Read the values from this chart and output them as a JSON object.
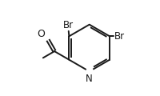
{
  "bg_color": "#ffffff",
  "bond_color": "#1a1a1a",
  "text_color": "#1a1a1a",
  "figsize": [
    2.0,
    1.2
  ],
  "dpi": 100,
  "br1_label": "Br",
  "br2_label": "Br",
  "n_label": "N",
  "o_label": "O",
  "font_size_br": 8.5,
  "font_size_n": 8.5,
  "font_size_o": 9,
  "lw": 1.4
}
